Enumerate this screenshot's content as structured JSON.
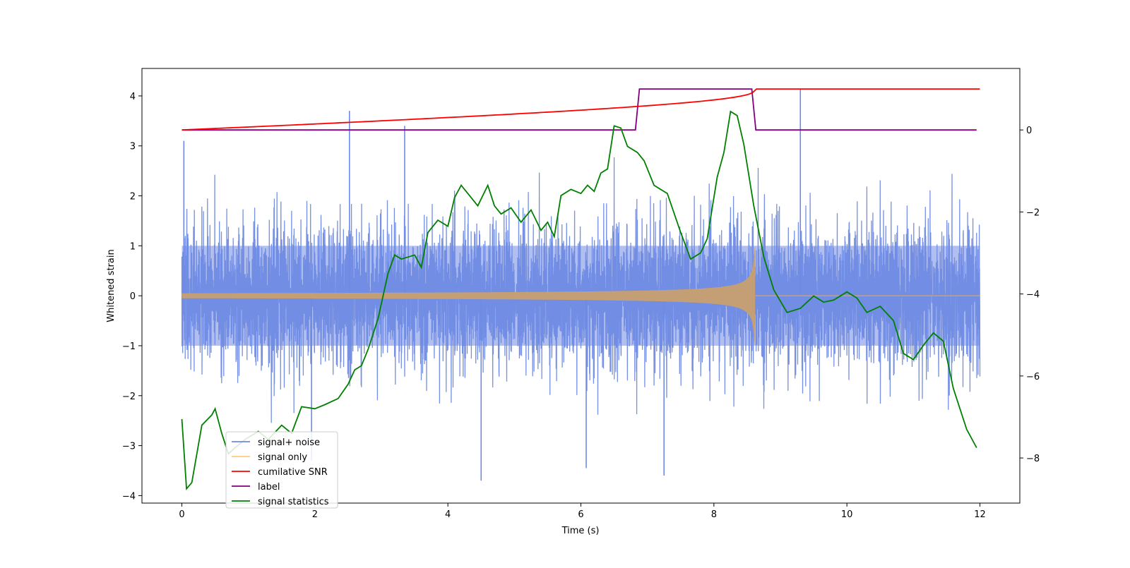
{
  "chart_data": {
    "type": "line",
    "title": "",
    "xlabel": "Time (s)",
    "ylabel": "Whitened strain",
    "y2label": "",
    "xlim": [
      -0.6,
      12.6
    ],
    "ylim": [
      -4.15,
      4.55
    ],
    "y2lim": [
      -9.1,
      1.5
    ],
    "xticks": [
      0,
      2,
      4,
      6,
      8,
      10,
      12
    ],
    "yticks": [
      -4,
      -3,
      -2,
      -1,
      0,
      1,
      2,
      3,
      4
    ],
    "y2ticks": [
      -8,
      -6,
      -4,
      -2,
      0
    ],
    "grid": false,
    "legend_position": "lower-left",
    "duration_s": 12,
    "merger_time_s": 8.62,
    "series": [
      {
        "name": "signal+ noise",
        "color": "#6f8ae3",
        "axis": "left",
        "kind": "noisy strain",
        "noise_std": 0.85,
        "spikes": [
          [
            0.03,
            3.1
          ],
          [
            2.52,
            3.7
          ],
          [
            3.35,
            3.4
          ],
          [
            9.3,
            4.15
          ],
          [
            4.5,
            -3.7
          ],
          [
            7.25,
            -3.6
          ],
          [
            6.08,
            -3.45
          ],
          [
            1.95,
            -3.3
          ]
        ]
      },
      {
        "name": "signal only",
        "color": "#ffb347",
        "axis": "left",
        "kind": "chirp",
        "peak_amplitude": 1.0,
        "base_amplitude": 0.05
      },
      {
        "name": "cumilative SNR",
        "color": "#ff0000",
        "axis": "right",
        "x": [
          0,
          1,
          2,
          3,
          4,
          5,
          6,
          6.5,
          7,
          7.5,
          8,
          8.3,
          8.5,
          8.62,
          12
        ],
        "values": [
          0.0,
          0.08,
          0.15,
          0.21,
          0.27,
          0.33,
          0.42,
          0.48,
          0.56,
          0.65,
          0.78,
          0.88,
          0.98,
          1.0,
          1.0
        ]
      },
      {
        "name": "label",
        "color": "#800080",
        "axis": "right",
        "x": [
          0,
          6.82,
          6.88,
          8.57,
          8.63,
          11.95
        ],
        "values": [
          0,
          0,
          1,
          1,
          0,
          0
        ]
      },
      {
        "name": "signal statistics",
        "color": "#008000",
        "axis": "right",
        "x": [
          0,
          0.07,
          0.15,
          0.3,
          0.45,
          0.5,
          0.6,
          0.7,
          0.8,
          0.95,
          1.15,
          1.3,
          1.5,
          1.65,
          1.8,
          2.0,
          2.15,
          2.35,
          2.5,
          2.6,
          2.7,
          2.8,
          2.95,
          3.1,
          3.2,
          3.3,
          3.5,
          3.6,
          3.7,
          3.85,
          4.0,
          4.1,
          4.2,
          4.3,
          4.45,
          4.6,
          4.7,
          4.8,
          4.95,
          5.1,
          5.25,
          5.4,
          5.5,
          5.6,
          5.7,
          5.85,
          6.0,
          6.1,
          6.2,
          6.3,
          6.4,
          6.5,
          6.6,
          6.7,
          6.85,
          6.95,
          7.1,
          7.3,
          7.5,
          7.65,
          7.8,
          7.9,
          8.05,
          8.15,
          8.25,
          8.35,
          8.45,
          8.6,
          8.75,
          8.9,
          9.1,
          9.3,
          9.5,
          9.65,
          9.8,
          10.0,
          10.15,
          10.3,
          10.5,
          10.7,
          10.85,
          11.0,
          11.15,
          11.3,
          11.45,
          11.6,
          11.8,
          11.95
        ],
        "values": [
          -7.05,
          -8.75,
          -8.6,
          -7.2,
          -6.95,
          -6.8,
          -7.4,
          -7.9,
          -7.75,
          -7.55,
          -7.35,
          -7.55,
          -7.2,
          -7.4,
          -6.75,
          -6.8,
          -6.7,
          -6.55,
          -6.2,
          -5.85,
          -5.75,
          -5.35,
          -4.6,
          -3.5,
          -3.05,
          -3.15,
          -3.05,
          -3.35,
          -2.5,
          -2.2,
          -2.35,
          -1.65,
          -1.35,
          -1.55,
          -1.85,
          -1.35,
          -1.85,
          -2.05,
          -1.9,
          -2.25,
          -1.95,
          -2.45,
          -2.25,
          -2.6,
          -1.6,
          -1.45,
          -1.55,
          -1.35,
          -1.5,
          -1.05,
          -0.95,
          0.1,
          0.05,
          -0.4,
          -0.55,
          -0.75,
          -1.35,
          -1.55,
          -2.5,
          -3.15,
          -3.0,
          -2.65,
          -1.15,
          -0.55,
          0.45,
          0.35,
          -0.35,
          -1.85,
          -3.1,
          -3.9,
          -4.45,
          -4.35,
          -4.05,
          -4.2,
          -4.15,
          -3.95,
          -4.1,
          -4.45,
          -4.3,
          -4.65,
          -5.45,
          -5.6,
          -5.25,
          -4.95,
          -5.15,
          -6.3,
          -7.3,
          -7.75
        ]
      }
    ]
  }
}
